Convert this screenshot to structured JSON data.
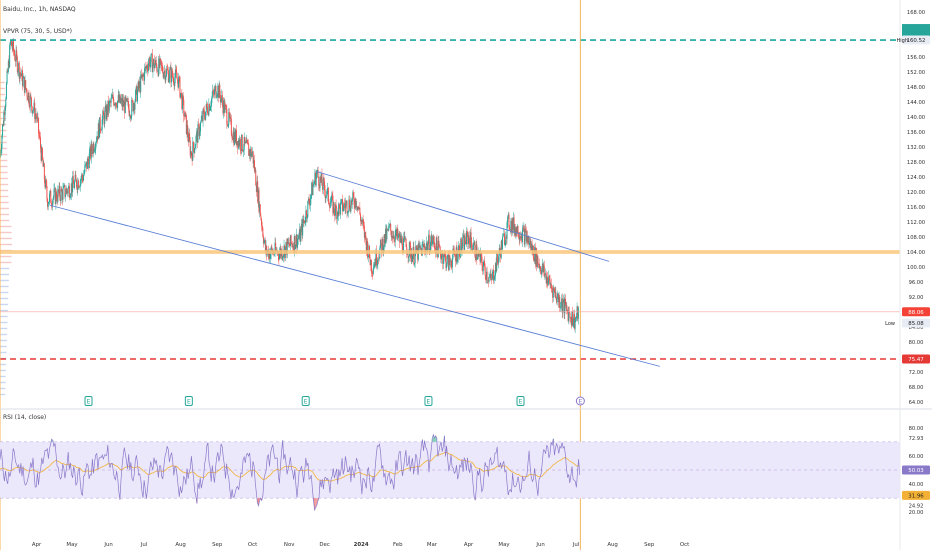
{
  "header": {
    "title": "Baidu, Inc., 1h, NASDAQ",
    "indicator": "VPVR (75, 30, 5, USD*)",
    "rsi_title": "RSI (14, close)"
  },
  "colors": {
    "up": "#26a69a",
    "down": "#ef5350",
    "channel": "#5b7fd6",
    "zone": "#f9c77c",
    "high_line": "#1aa6a0",
    "low_line": "#e53935",
    "rsi": "#8a78c9",
    "rsi_ma": "#f2b134",
    "cursor": "#f5b45a",
    "rsi_band": "#ece8fb"
  },
  "price_axis": {
    "ticks": [
      "168.00",
      "164.00",
      "160.00",
      "156.00",
      "152.00",
      "148.00",
      "144.00",
      "140.00",
      "136.00",
      "132.00",
      "128.00",
      "124.00",
      "120.00",
      "116.00",
      "112.00",
      "108.00",
      "104.00",
      "100.00",
      "96.00",
      "92.00",
      "88.00",
      "84.00",
      "80.00",
      "76.00",
      "72.00",
      "68.00",
      "64.00"
    ],
    "high_label": "High",
    "high_value": "160.52",
    "low_label": "Low",
    "low_value": "85.08",
    "last_value": "88.06",
    "red_value": "75.47"
  },
  "rsi_axis": {
    "ticks": [
      "80.00",
      "72.93",
      "60.00",
      "40.00",
      "24.92",
      "20.00"
    ],
    "current": "50.03",
    "ma": "31.96"
  },
  "time_axis": [
    "Apr",
    "May",
    "Jun",
    "Jul",
    "Aug",
    "Sep",
    "Oct",
    "Nov",
    "Dec",
    "2024",
    "Feb",
    "Mar",
    "Apr",
    "May",
    "Jun",
    "Jul",
    "Aug",
    "Sep",
    "Oct"
  ],
  "chart_data": {
    "type": "candlestick",
    "y_range": [
      64,
      168
    ],
    "levels": {
      "high": 160.52,
      "low": 85.08,
      "last": 88.06,
      "support": 75.47,
      "zone": [
        103.5,
        104.5
      ]
    },
    "channel": [
      {
        "name": "upper",
        "from": {
          "date": "2023-11-24",
          "price": 125.5
        },
        "to": {
          "date": "2024-07-29",
          "price": 101.5
        }
      },
      {
        "name": "lower",
        "from": {
          "date": "2023-04-12",
          "price": 116.5
        },
        "to": {
          "date": "2024-09-10",
          "price": 73.5
        }
      }
    ],
    "price_path": [
      [
        "2023-03-01",
        130
      ],
      [
        "2023-03-10",
        160
      ],
      [
        "2023-03-20",
        150
      ],
      [
        "2023-04-01",
        140
      ],
      [
        "2023-04-10",
        118
      ],
      [
        "2023-04-25",
        120
      ],
      [
        "2023-05-10",
        124
      ],
      [
        "2023-05-25",
        138
      ],
      [
        "2023-06-05",
        145
      ],
      [
        "2023-06-20",
        142
      ],
      [
        "2023-07-05",
        155
      ],
      [
        "2023-07-20",
        152
      ],
      [
        "2023-07-30",
        150
      ],
      [
        "2023-08-10",
        130
      ],
      [
        "2023-08-20",
        140
      ],
      [
        "2023-09-01",
        148
      ],
      [
        "2023-09-15",
        135
      ],
      [
        "2023-10-01",
        130
      ],
      [
        "2023-10-12",
        104
      ],
      [
        "2023-10-25",
        104
      ],
      [
        "2023-11-10",
        108
      ],
      [
        "2023-11-24",
        125
      ],
      [
        "2023-12-10",
        115
      ],
      [
        "2023-12-28",
        118
      ],
      [
        "2024-01-10",
        100
      ],
      [
        "2024-01-25",
        110
      ],
      [
        "2024-02-15",
        103
      ],
      [
        "2024-03-01",
        107
      ],
      [
        "2024-03-15",
        101
      ],
      [
        "2024-04-01",
        108
      ],
      [
        "2024-04-20",
        96
      ],
      [
        "2024-05-05",
        112
      ],
      [
        "2024-05-20",
        108
      ],
      [
        "2024-06-01",
        100
      ],
      [
        "2024-06-15",
        92
      ],
      [
        "2024-06-30",
        85.5
      ],
      [
        "2024-07-03",
        88
      ]
    ],
    "rsi": {
      "band": [
        30,
        70
      ],
      "current": 50.03,
      "ma": 31.96,
      "y_range": [
        18,
        82
      ]
    },
    "markers": [
      "E",
      "E",
      "E",
      "E",
      "E",
      "E"
    ]
  }
}
